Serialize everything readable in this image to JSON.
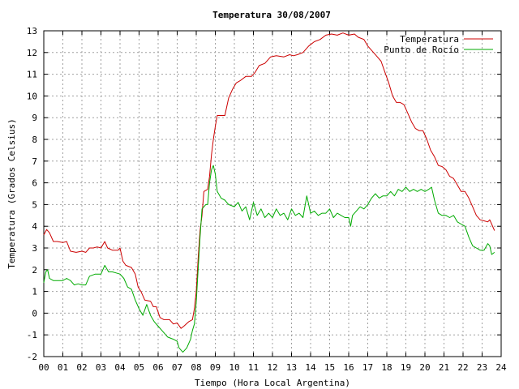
{
  "chart_data": {
    "type": "line",
    "title": "Temperatura 30/08/2007",
    "xlabel": "Tiempo (Hora Local Argentina)",
    "ylabel": "Temperatura (Grados Celsius)",
    "xlim": [
      0,
      24
    ],
    "ylim": [
      -2,
      13
    ],
    "x_ticks": [
      "00",
      "01",
      "02",
      "03",
      "04",
      "05",
      "06",
      "07",
      "08",
      "09",
      "10",
      "11",
      "12",
      "13",
      "14",
      "15",
      "16",
      "17",
      "18",
      "19",
      "20",
      "21",
      "22",
      "23",
      "24"
    ],
    "y_ticks": [
      -2,
      -1,
      0,
      1,
      2,
      3,
      4,
      5,
      6,
      7,
      8,
      9,
      10,
      11,
      12,
      13
    ],
    "grid": true,
    "legend_position": "top-right",
    "series": [
      {
        "name": "Temperatura",
        "color": "#cc0000",
        "points": [
          [
            0,
            3.6
          ],
          [
            0.15,
            3.85
          ],
          [
            0.3,
            3.7
          ],
          [
            0.5,
            3.3
          ],
          [
            0.7,
            3.3
          ],
          [
            1.0,
            3.25
          ],
          [
            1.2,
            3.3
          ],
          [
            1.4,
            2.85
          ],
          [
            1.7,
            2.8
          ],
          [
            2.0,
            2.85
          ],
          [
            2.2,
            2.8
          ],
          [
            2.4,
            3.0
          ],
          [
            2.6,
            3.0
          ],
          [
            2.8,
            3.05
          ],
          [
            3.0,
            3.0
          ],
          [
            3.2,
            3.3
          ],
          [
            3.35,
            3.0
          ],
          [
            3.6,
            2.9
          ],
          [
            3.9,
            2.9
          ],
          [
            4.0,
            3.0
          ],
          [
            4.15,
            2.4
          ],
          [
            4.3,
            2.2
          ],
          [
            4.6,
            2.1
          ],
          [
            4.8,
            1.8
          ],
          [
            4.95,
            1.2
          ],
          [
            5.1,
            1.0
          ],
          [
            5.3,
            0.6
          ],
          [
            5.6,
            0.55
          ],
          [
            5.75,
            0.3
          ],
          [
            5.9,
            0.3
          ],
          [
            6.1,
            -0.2
          ],
          [
            6.3,
            -0.3
          ],
          [
            6.6,
            -0.3
          ],
          [
            6.8,
            -0.5
          ],
          [
            7.0,
            -0.45
          ],
          [
            7.2,
            -0.7
          ],
          [
            7.35,
            -0.6
          ],
          [
            7.6,
            -0.4
          ],
          [
            7.8,
            -0.3
          ],
          [
            7.9,
            0.2
          ],
          [
            8.0,
            1.0
          ],
          [
            8.1,
            2.5
          ],
          [
            8.2,
            3.8
          ],
          [
            8.3,
            4.5
          ],
          [
            8.4,
            5.6
          ],
          [
            8.6,
            5.7
          ],
          [
            8.7,
            6.3
          ],
          [
            8.8,
            7.3
          ],
          [
            8.9,
            8.0
          ],
          [
            9.0,
            8.6
          ],
          [
            9.1,
            9.1
          ],
          [
            9.3,
            9.1
          ],
          [
            9.5,
            9.1
          ],
          [
            9.7,
            9.9
          ],
          [
            9.9,
            10.3
          ],
          [
            10.1,
            10.6
          ],
          [
            10.3,
            10.7
          ],
          [
            10.6,
            10.9
          ],
          [
            10.9,
            10.9
          ],
          [
            11.1,
            11.1
          ],
          [
            11.3,
            11.4
          ],
          [
            11.6,
            11.5
          ],
          [
            11.9,
            11.8
          ],
          [
            12.2,
            11.85
          ],
          [
            12.6,
            11.8
          ],
          [
            12.9,
            11.9
          ],
          [
            13.1,
            11.85
          ],
          [
            13.3,
            11.9
          ],
          [
            13.6,
            12.0
          ],
          [
            13.9,
            12.3
          ],
          [
            14.2,
            12.5
          ],
          [
            14.5,
            12.6
          ],
          [
            14.8,
            12.8
          ],
          [
            15.1,
            12.85
          ],
          [
            15.4,
            12.8
          ],
          [
            15.7,
            12.9
          ],
          [
            16.0,
            12.8
          ],
          [
            16.3,
            12.85
          ],
          [
            16.5,
            12.7
          ],
          [
            16.8,
            12.6
          ],
          [
            17.0,
            12.3
          ],
          [
            17.3,
            12.0
          ],
          [
            17.5,
            11.8
          ],
          [
            17.7,
            11.6
          ],
          [
            17.9,
            11.1
          ],
          [
            18.1,
            10.6
          ],
          [
            18.3,
            10.0
          ],
          [
            18.5,
            9.7
          ],
          [
            18.7,
            9.7
          ],
          [
            18.9,
            9.6
          ],
          [
            19.1,
            9.2
          ],
          [
            19.3,
            8.8
          ],
          [
            19.5,
            8.5
          ],
          [
            19.7,
            8.4
          ],
          [
            19.9,
            8.4
          ],
          [
            20.1,
            8.0
          ],
          [
            20.3,
            7.5
          ],
          [
            20.5,
            7.2
          ],
          [
            20.7,
            6.8
          ],
          [
            20.9,
            6.75
          ],
          [
            21.1,
            6.6
          ],
          [
            21.3,
            6.3
          ],
          [
            21.5,
            6.2
          ],
          [
            21.7,
            5.9
          ],
          [
            21.9,
            5.6
          ],
          [
            22.1,
            5.6
          ],
          [
            22.3,
            5.3
          ],
          [
            22.5,
            4.9
          ],
          [
            22.7,
            4.5
          ],
          [
            22.9,
            4.3
          ],
          [
            23.1,
            4.25
          ],
          [
            23.3,
            4.2
          ],
          [
            23.4,
            4.3
          ],
          [
            23.5,
            4.1
          ],
          [
            23.65,
            3.8
          ]
        ]
      },
      {
        "name": "Punto de Rocío",
        "color": "#00aa00",
        "points": [
          [
            0,
            1.4
          ],
          [
            0.1,
            1.9
          ],
          [
            0.2,
            2.0
          ],
          [
            0.3,
            1.6
          ],
          [
            0.5,
            1.5
          ],
          [
            0.8,
            1.5
          ],
          [
            1.0,
            1.5
          ],
          [
            1.2,
            1.6
          ],
          [
            1.4,
            1.5
          ],
          [
            1.6,
            1.3
          ],
          [
            1.8,
            1.35
          ],
          [
            2.0,
            1.3
          ],
          [
            2.2,
            1.3
          ],
          [
            2.4,
            1.7
          ],
          [
            2.7,
            1.8
          ],
          [
            3.0,
            1.8
          ],
          [
            3.2,
            2.2
          ],
          [
            3.4,
            1.9
          ],
          [
            3.6,
            1.9
          ],
          [
            3.8,
            1.85
          ],
          [
            4.0,
            1.8
          ],
          [
            4.2,
            1.6
          ],
          [
            4.4,
            1.2
          ],
          [
            4.6,
            1.1
          ],
          [
            4.8,
            0.6
          ],
          [
            5.0,
            0.2
          ],
          [
            5.2,
            -0.1
          ],
          [
            5.4,
            0.4
          ],
          [
            5.6,
            -0.1
          ],
          [
            5.8,
            -0.4
          ],
          [
            6.0,
            -0.6
          ],
          [
            6.2,
            -0.8
          ],
          [
            6.5,
            -1.1
          ],
          [
            6.8,
            -1.2
          ],
          [
            7.0,
            -1.3
          ],
          [
            7.1,
            -1.6
          ],
          [
            7.3,
            -1.8
          ],
          [
            7.5,
            -1.6
          ],
          [
            7.7,
            -1.2
          ],
          [
            7.8,
            -0.8
          ],
          [
            7.9,
            -0.5
          ],
          [
            8.0,
            0.5
          ],
          [
            8.1,
            2.0
          ],
          [
            8.2,
            3.5
          ],
          [
            8.3,
            4.8
          ],
          [
            8.5,
            5.0
          ],
          [
            8.6,
            5.0
          ],
          [
            8.7,
            6.0
          ],
          [
            8.8,
            6.6
          ],
          [
            8.9,
            6.8
          ],
          [
            9.0,
            6.4
          ],
          [
            9.1,
            5.6
          ],
          [
            9.3,
            5.3
          ],
          [
            9.5,
            5.2
          ],
          [
            9.7,
            5.0
          ],
          [
            10.0,
            4.9
          ],
          [
            10.2,
            5.1
          ],
          [
            10.4,
            4.7
          ],
          [
            10.6,
            4.9
          ],
          [
            10.8,
            4.3
          ],
          [
            11.0,
            5.1
          ],
          [
            11.2,
            4.5
          ],
          [
            11.4,
            4.8
          ],
          [
            11.6,
            4.4
          ],
          [
            11.8,
            4.6
          ],
          [
            12.0,
            4.4
          ],
          [
            12.2,
            4.8
          ],
          [
            12.4,
            4.5
          ],
          [
            12.6,
            4.6
          ],
          [
            12.8,
            4.3
          ],
          [
            13.0,
            4.8
          ],
          [
            13.2,
            4.5
          ],
          [
            13.4,
            4.6
          ],
          [
            13.6,
            4.4
          ],
          [
            13.8,
            5.4
          ],
          [
            14.0,
            4.6
          ],
          [
            14.2,
            4.7
          ],
          [
            14.4,
            4.5
          ],
          [
            14.6,
            4.6
          ],
          [
            14.8,
            4.6
          ],
          [
            15.0,
            4.8
          ],
          [
            15.2,
            4.4
          ],
          [
            15.4,
            4.6
          ],
          [
            15.6,
            4.5
          ],
          [
            15.8,
            4.4
          ],
          [
            16.0,
            4.4
          ],
          [
            16.1,
            4.0
          ],
          [
            16.2,
            4.5
          ],
          [
            16.4,
            4.7
          ],
          [
            16.6,
            4.9
          ],
          [
            16.8,
            4.8
          ],
          [
            17.0,
            5.0
          ],
          [
            17.2,
            5.3
          ],
          [
            17.4,
            5.5
          ],
          [
            17.6,
            5.3
          ],
          [
            17.8,
            5.4
          ],
          [
            18.0,
            5.4
          ],
          [
            18.2,
            5.6
          ],
          [
            18.4,
            5.4
          ],
          [
            18.6,
            5.7
          ],
          [
            18.8,
            5.6
          ],
          [
            19.0,
            5.8
          ],
          [
            19.2,
            5.6
          ],
          [
            19.4,
            5.7
          ],
          [
            19.6,
            5.6
          ],
          [
            19.8,
            5.7
          ],
          [
            20.0,
            5.6
          ],
          [
            20.2,
            5.7
          ],
          [
            20.35,
            5.8
          ],
          [
            20.5,
            5.2
          ],
          [
            20.7,
            4.6
          ],
          [
            20.9,
            4.5
          ],
          [
            21.1,
            4.5
          ],
          [
            21.3,
            4.4
          ],
          [
            21.5,
            4.5
          ],
          [
            21.7,
            4.2
          ],
          [
            21.9,
            4.1
          ],
          [
            22.1,
            4.0
          ],
          [
            22.3,
            3.5
          ],
          [
            22.5,
            3.1
          ],
          [
            22.7,
            3.0
          ],
          [
            22.9,
            2.9
          ],
          [
            23.1,
            2.9
          ],
          [
            23.3,
            3.2
          ],
          [
            23.4,
            3.1
          ],
          [
            23.5,
            2.7
          ],
          [
            23.65,
            2.8
          ]
        ]
      }
    ]
  }
}
